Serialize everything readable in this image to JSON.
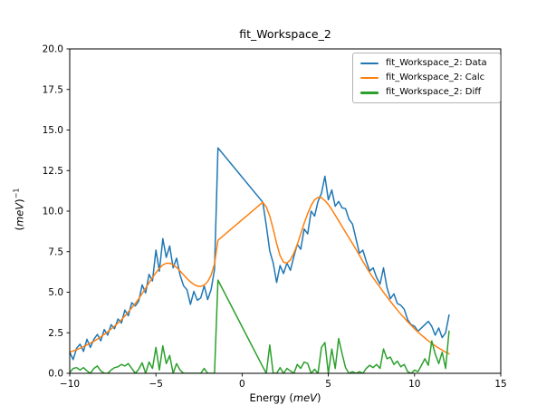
{
  "figure": {
    "background": "#ffffff"
  },
  "legend": {
    "items": [
      {
        "label": "fit_Workspace_2: Data",
        "color": "#1f77b4"
      },
      {
        "label": "fit_Workspace_2: Calc",
        "color": "#ff7f0e"
      },
      {
        "label": "fit_Workspace_2: Diff",
        "color": "#2ca02c"
      }
    ]
  },
  "axes": {
    "xlabel": {
      "prefix": "Energy (",
      "italic": "meV",
      "suffix": ")"
    },
    "ylabel": {
      "prefix": "(",
      "italic": "meV",
      "suffix": ")",
      "sup": "−1"
    },
    "xtick_labels": [
      "−10",
      "−5",
      "0",
      "5",
      "10",
      "15"
    ],
    "xtick_values": [
      -10,
      -5,
      0,
      5,
      10,
      15
    ],
    "ytick_labels": [
      "0.0",
      "2.5",
      "5.0",
      "7.5",
      "10.0",
      "12.5",
      "15.0",
      "17.5",
      "20.0"
    ],
    "ytick_values": [
      0,
      2.5,
      5,
      7.5,
      10,
      12.5,
      15,
      17.5,
      20
    ]
  },
  "chart_data": {
    "type": "line",
    "title": "fit_Workspace_2",
    "xlabel": "Energy (meV)",
    "ylabel": "(meV)^-1",
    "xlim": [
      -10,
      15
    ],
    "ylim": [
      0,
      20
    ],
    "grid": false,
    "legend_position": "upper right",
    "x": [
      -10.0,
      -9.8,
      -9.6,
      -9.4,
      -9.2,
      -9.0,
      -8.8,
      -8.6,
      -8.4,
      -8.2,
      -8.0,
      -7.8,
      -7.6,
      -7.4,
      -7.2,
      -7.0,
      -6.8,
      -6.6,
      -6.4,
      -6.2,
      -6.0,
      -5.8,
      -5.6,
      -5.4,
      -5.2,
      -5.0,
      -4.8,
      -4.6,
      -4.4,
      -4.2,
      -4.0,
      -3.8,
      -3.6,
      -3.4,
      -3.2,
      -3.0,
      -2.8,
      -2.6,
      -2.4,
      -2.2,
      -2.0,
      -1.8,
      -1.6,
      -1.4,
      1.2,
      1.4,
      1.6,
      1.8,
      2.0,
      2.2,
      2.4,
      2.6,
      2.8,
      3.0,
      3.2,
      3.4,
      3.6,
      3.8,
      4.0,
      4.2,
      4.4,
      4.6,
      4.8,
      5.0,
      5.2,
      5.4,
      5.6,
      5.8,
      6.0,
      6.2,
      6.4,
      6.6,
      6.8,
      7.0,
      7.2,
      7.4,
      7.6,
      7.8,
      8.0,
      8.2,
      8.4,
      8.6,
      8.8,
      9.0,
      9.2,
      9.4,
      9.6,
      9.8,
      10.0,
      10.2,
      10.4,
      10.6,
      10.8,
      11.0,
      11.2,
      11.4,
      11.6,
      11.8,
      12.0
    ],
    "series": [
      {
        "name": "fit_Workspace_2: Data",
        "color": "#1f77b4",
        "values": [
          1.3,
          0.85,
          1.55,
          1.8,
          1.35,
          2.1,
          1.6,
          2.1,
          2.4,
          2.0,
          2.7,
          2.35,
          3.0,
          2.75,
          3.35,
          3.1,
          3.9,
          3.55,
          4.35,
          4.15,
          4.45,
          5.45,
          4.95,
          6.1,
          5.7,
          7.6,
          6.3,
          8.3,
          7.15,
          7.85,
          6.5,
          7.1,
          6.05,
          5.4,
          5.15,
          4.25,
          5.05,
          4.5,
          4.65,
          5.4,
          4.55,
          5.15,
          6.4,
          13.9,
          10.55,
          9.1,
          7.55,
          6.8,
          5.6,
          6.65,
          6.15,
          6.8,
          6.35,
          7.2,
          7.95,
          7.65,
          8.9,
          8.6,
          10.0,
          9.7,
          10.6,
          11.1,
          12.15,
          10.7,
          11.3,
          10.3,
          10.6,
          10.2,
          10.15,
          9.5,
          9.2,
          8.3,
          7.4,
          7.6,
          6.9,
          6.3,
          6.5,
          5.9,
          5.5,
          6.5,
          5.3,
          4.6,
          4.9,
          4.3,
          4.2,
          3.95,
          3.3,
          3.0,
          2.9,
          2.6,
          2.8,
          3.0,
          3.2,
          2.9,
          2.35,
          2.8,
          2.2,
          2.5,
          3.6
        ]
      },
      {
        "name": "fit_Workspace_2: Calc",
        "color": "#ff7f0e",
        "values": [
          1.3,
          1.38,
          1.46,
          1.55,
          1.65,
          1.75,
          1.86,
          1.98,
          2.11,
          2.25,
          2.4,
          2.56,
          2.73,
          2.91,
          3.1,
          3.3,
          3.53,
          3.78,
          4.04,
          4.31,
          4.6,
          4.92,
          5.25,
          5.58,
          5.9,
          6.2,
          6.47,
          6.68,
          6.79,
          6.79,
          6.7,
          6.53,
          6.31,
          6.07,
          5.84,
          5.64,
          5.48,
          5.38,
          5.36,
          5.44,
          5.65,
          6.05,
          6.75,
          8.2,
          10.55,
          10.25,
          9.7,
          8.9,
          8.0,
          7.25,
          6.85,
          6.8,
          7.0,
          7.4,
          7.95,
          8.6,
          9.25,
          9.85,
          10.35,
          10.7,
          10.85,
          10.82,
          10.65,
          10.4,
          10.1,
          9.75,
          9.4,
          9.05,
          8.7,
          8.35,
          8.0,
          7.65,
          7.28,
          6.9,
          6.55,
          6.2,
          5.88,
          5.58,
          5.3,
          5.0,
          4.72,
          4.44,
          4.16,
          3.9,
          3.65,
          3.42,
          3.18,
          2.96,
          2.75,
          2.55,
          2.36,
          2.18,
          2.0,
          1.85,
          1.7,
          1.56,
          1.43,
          1.31,
          1.2
        ]
      },
      {
        "name": "fit_Workspace_2: Diff",
        "color": "#2ca02c",
        "values": [
          0.05,
          0.3,
          0.35,
          0.2,
          0.35,
          0.15,
          0.0,
          0.3,
          0.45,
          0.15,
          0.0,
          0.0,
          0.2,
          0.35,
          0.4,
          0.55,
          0.45,
          0.6,
          0.3,
          0.0,
          0.25,
          0.65,
          0.0,
          0.7,
          0.3,
          1.6,
          0.2,
          1.7,
          0.6,
          1.1,
          0.0,
          0.6,
          0.2,
          0.0,
          0.0,
          0.0,
          0.0,
          0.0,
          0.0,
          0.3,
          0.0,
          0.0,
          0.0,
          5.75,
          0.4,
          0.0,
          1.75,
          0.0,
          0.0,
          0.35,
          0.0,
          0.3,
          0.15,
          0.0,
          0.55,
          0.3,
          0.7,
          0.6,
          0.0,
          0.25,
          0.0,
          1.6,
          1.9,
          0.0,
          1.5,
          0.3,
          2.15,
          1.2,
          0.35,
          0.0,
          0.1,
          0.0,
          0.1,
          0.0,
          0.3,
          0.5,
          0.35,
          0.55,
          0.3,
          1.5,
          0.9,
          1.0,
          0.55,
          0.75,
          0.4,
          0.55,
          0.1,
          0.0,
          0.2,
          0.1,
          0.5,
          0.9,
          0.5,
          2.0,
          1.2,
          0.6,
          1.3,
          0.3,
          2.6
        ]
      }
    ]
  }
}
